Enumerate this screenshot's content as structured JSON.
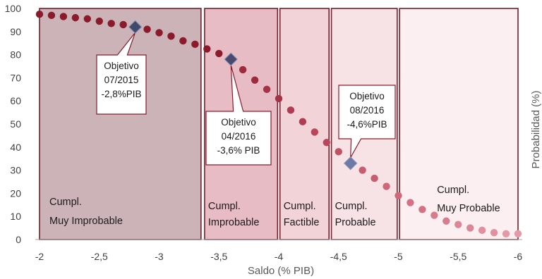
{
  "chart_data": {
    "type": "scatter",
    "title": "",
    "xlabel": "Saldo (% PIB)",
    "ylabel": "Probabilidad (%)",
    "xlim": [
      -2,
      -6
    ],
    "ylim": [
      0,
      100
    ],
    "x_ticks": [
      {
        "value": -2,
        "label": "-2"
      },
      {
        "value": -2.5,
        "label": "-2,5"
      },
      {
        "value": -3,
        "label": "-3"
      },
      {
        "value": -3.5,
        "label": "-3,5"
      },
      {
        "value": -4,
        "label": "-4"
      },
      {
        "value": -4.5,
        "label": "-4,5"
      },
      {
        "value": -5,
        "label": "-5"
      },
      {
        "value": -5.5,
        "label": "-5,5"
      },
      {
        "value": -6,
        "label": "-6"
      }
    ],
    "y_ticks": [
      0,
      10,
      20,
      30,
      40,
      50,
      60,
      70,
      80,
      90,
      100
    ],
    "zones": [
      {
        "from": -2.0,
        "to": -3.35,
        "fill": "#ccb3b8",
        "lines": [
          "Cumpl.",
          "Muy Improbable"
        ]
      },
      {
        "from": -3.38,
        "to": -3.99,
        "fill": "#e8bcc4",
        "lines": [
          "Cumpl.",
          "Improbable"
        ]
      },
      {
        "from": -4.01,
        "to": -4.42,
        "fill": "#f2d3d8",
        "lines": [
          "Cumpl.",
          "Factible"
        ]
      },
      {
        "from": -4.44,
        "to": -4.99,
        "fill": "#f7e3e6",
        "lines": [
          "Cumpl.",
          "Probable"
        ]
      },
      {
        "from": -5.01,
        "to": -6.0,
        "fill": "#fbeff1",
        "lines": [
          "Cumpl.",
          "Muy Probable"
        ]
      }
    ],
    "series": [
      {
        "x": [
          -2.0,
          -2.1,
          -2.2,
          -2.3,
          -2.4,
          -2.5,
          -2.6,
          -2.7,
          -2.8,
          -2.9,
          -3.0,
          -3.1,
          -3.2,
          -3.3,
          -3.4,
          -3.5,
          -3.6,
          -3.7,
          -3.8,
          -3.9,
          -4.0,
          -4.1,
          -4.2,
          -4.3,
          -4.4,
          -4.5,
          -4.6,
          -4.7,
          -4.8,
          -4.9,
          -5.0,
          -5.1,
          -5.2,
          -5.3,
          -5.4,
          -5.5,
          -5.6,
          -5.7,
          -5.8,
          -5.9,
          -6.0
        ],
        "y": [
          97.5,
          97,
          96.5,
          96,
          95.5,
          94.5,
          93.5,
          93,
          92,
          91,
          89.5,
          88,
          86,
          84.5,
          82.5,
          80.5,
          78,
          73.5,
          69,
          65,
          61,
          56,
          51,
          46.5,
          42,
          38,
          33.5,
          30,
          26.5,
          23,
          19,
          16,
          13,
          10.5,
          8,
          6.5,
          5,
          4,
          3,
          2.5,
          2.5
        ],
        "colors": [
          "#8b1a2b",
          "#8b1a2b",
          "#8b1a2b",
          "#8b1a2b",
          "#8b1a2b",
          "#8b1a2b",
          "#8b1a2b",
          "#8b1a2b",
          "#8b1a2b",
          "#8b1a2b",
          "#8b1a2b",
          "#8b1a2b",
          "#8b1a2b",
          "#8b1a2b",
          "#8b1a2b",
          "#8b1a2b",
          "#8b1a2b",
          "#9e2a3d",
          "#9e2a3d",
          "#a53347",
          "#a53347",
          "#b03c52",
          "#b03c52",
          "#b8475c",
          "#b8475c",
          "#c05266",
          "#c05266",
          "#c85d70",
          "#c85d70",
          "#ce677a",
          "#ce677a",
          "#d37284",
          "#d37284",
          "#d77c8d",
          "#d77c8d",
          "#dc8797",
          "#dc8797",
          "#e0909f",
          "#e0909f",
          "#e399a7",
          "#e399a7"
        ]
      }
    ],
    "targets": [
      {
        "x": -2.8,
        "y": 92,
        "color": "#3f4a6b",
        "lines": [
          "Objetivo",
          "07/2015",
          "-2,8%PIB"
        ]
      },
      {
        "x": -3.6,
        "y": 78,
        "color": "#4a4a6e",
        "lines": [
          "Objetivo",
          "04/2016",
          "-3,6% PIB"
        ]
      },
      {
        "x": -4.6,
        "y": 33,
        "color": "#6b7aa6",
        "lines": [
          "Objetivo",
          "08/2016",
          "-4,6%PIB"
        ]
      }
    ],
    "grid": false,
    "legend": "none"
  }
}
